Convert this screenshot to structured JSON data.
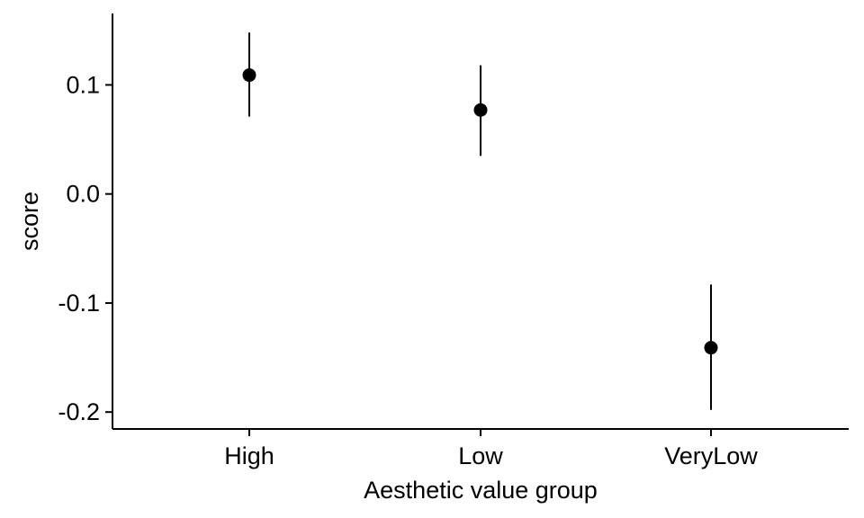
{
  "chart_data": {
    "type": "scatter",
    "title": "",
    "xlabel": "Aesthetic value group",
    "ylabel": "score",
    "categories": [
      "High",
      "Low",
      "VeryLow"
    ],
    "series": [
      {
        "values": [
          0.109,
          0.077,
          -0.141
        ],
        "lower": [
          0.071,
          0.035,
          -0.198
        ],
        "upper": [
          0.148,
          0.118,
          -0.083
        ]
      }
    ],
    "yticks": [
      0.1,
      0.0,
      -0.1,
      -0.2
    ],
    "ytick_labels": [
      "0.1",
      "0.0",
      "-0.1",
      "-0.2"
    ],
    "ylim": [
      -0.2155,
      0.1655
    ],
    "grid": false,
    "colors": {
      "point": "#000000",
      "errorbar": "#000000",
      "axis": "#000000"
    }
  }
}
